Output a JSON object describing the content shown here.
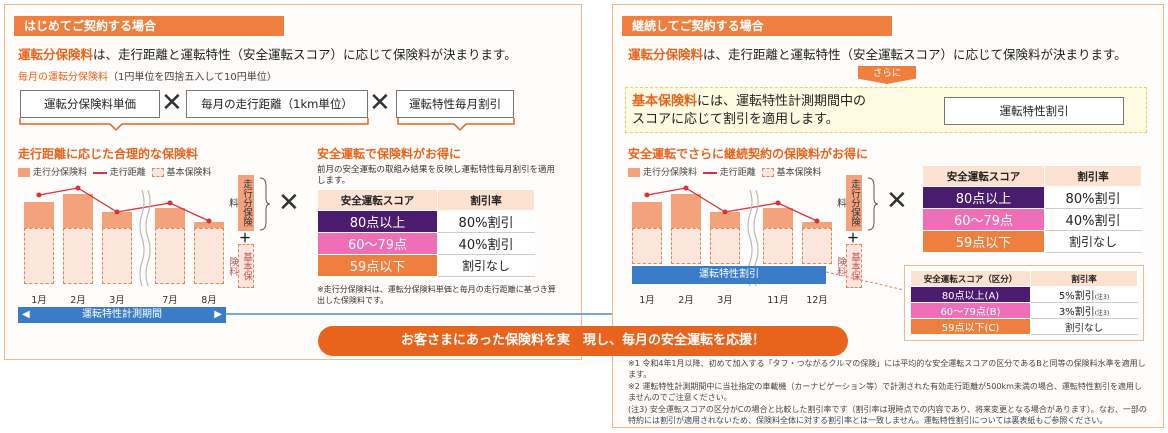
{
  "left": {
    "title": "はじめてご契約する場合",
    "lead_bold": "運転分保険料",
    "lead_rest": "は、走行距離と運転特性（安全運転スコア）に応じて保険料が決まります。",
    "monthly_label": "毎月の運転分保険料",
    "monthly_note": "（1円単位を四捨五入して10円単位）",
    "box1": "運転分保険料単価",
    "box2": "毎月の走行距離（1km単位）",
    "box3": "運転特性毎月割引",
    "times": "✕",
    "chart_title": "走行距離に応じた合理的な保険料",
    "legend_fill": "走行分保険料",
    "legend_line": "走行距離",
    "legend_dash": "基本保険料",
    "months": [
      "1月",
      "2月",
      "3月",
      "7月",
      "8月"
    ],
    "vbox_top": "走行分保険料",
    "plus": "＋",
    "vbox_bottom": "基本保険料",
    "period_label": "運転特性計測期間",
    "safe_title": "安全運転で保険料がお得に",
    "safe_desc": "前月の安全運転の取組み結果を反映し運転特性毎月割引を適用します。",
    "table": {
      "h1": "安全運転スコア",
      "h2": "割引率",
      "rows": [
        {
          "score": "80点以上",
          "rate": "80%割引"
        },
        {
          "score": "60〜79点",
          "rate": "40%割引"
        },
        {
          "score": "59点以下",
          "rate": "割引なし"
        }
      ]
    },
    "footnote": "※走行分保険料は、運転分保険料単価と毎月の走行距離に基づき算出した保険料です。"
  },
  "right": {
    "title": "継続してご契約する場合",
    "lead_bold": "運転分保険料",
    "lead_rest": "は、走行距離と運転特性（安全運転スコア）に応じて保険料が決まります。",
    "sarani": "さらに",
    "base_bold": "基本保険料",
    "base_rest": "には、運転特性計測期間中の",
    "base_line2": "スコアに応じて割引を適用します。",
    "base_box": "運転特性割引",
    "chart_title": "安全運転でさらに継続契約の保険料がお得に",
    "legend_fill": "走行分保険料",
    "legend_line": "走行距離",
    "legend_dash": "基本保険料",
    "months": [
      "1月",
      "2月",
      "3月",
      "11月",
      "12月"
    ],
    "vbox_top": "走行分保険料",
    "plus": "＋",
    "vbox_bottom": "基本保険料",
    "blue_label": "運転特性割引",
    "times": "✕",
    "table": {
      "h1": "安全運転スコア",
      "h2": "割引率",
      "rows": [
        {
          "score": "80点以上",
          "rate": "80%割引"
        },
        {
          "score": "60〜79点",
          "rate": "40%割引"
        },
        {
          "score": "59点以下",
          "rate": "割引なし"
        }
      ]
    },
    "table2": {
      "h1": "安全運転スコア（区分）",
      "h2": "割引率",
      "rows": [
        {
          "score": "80点以上(A)",
          "rate": "5%割引",
          "sup": "(注3)"
        },
        {
          "score": "60〜79点(B)",
          "rate": "3%割引",
          "sup": "(注3)"
        },
        {
          "score": "59点以下(C)",
          "rate": "割引なし",
          "sup": ""
        }
      ]
    },
    "notes": [
      "※1 令和4年1月以降、初めて加入する「タフ・つながるクルマの保険」には平均的な安全運転スコアの区分であるBと同等の保険料水準を適用します。",
      "※2 運転特性計測期間中に当社指定の車載機（カーナビゲーション等）で計測された有効走行距離が500km未満の場合、運転特性割引を適用しませんのでご注意ください。",
      "(注3) 安全運転スコアの区分がCの場合と比較した割引率です（割引率は現時点での内容であり、将来変更となる場合があります）。なお、一部の特約には割引が適用されないため、保険料全体に対する割引率とは一致しません。運転特性割引については裏表紙もご参照ください。"
    ]
  },
  "banner": "お客さまにあった保険料を実　現し、毎月の安全運転を応援！"
}
